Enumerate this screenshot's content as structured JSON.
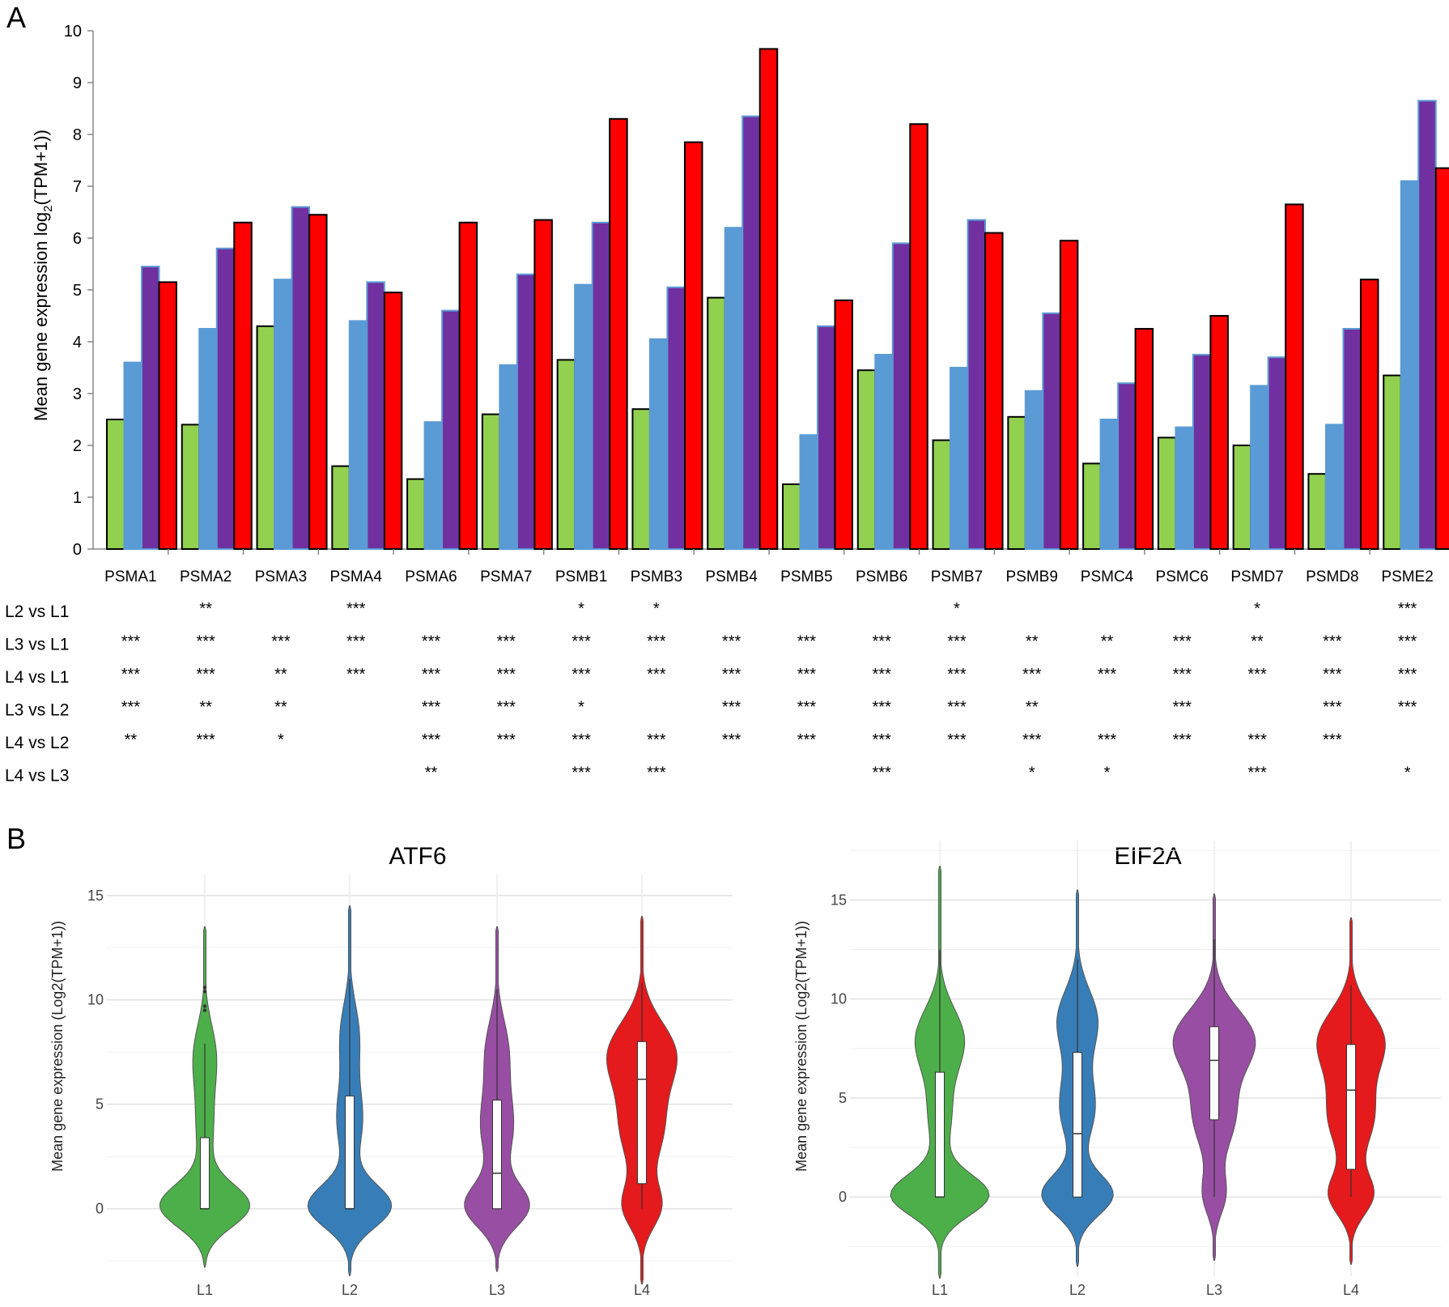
{
  "panel_labels": {
    "a": "A",
    "b": "B"
  },
  "chart_data": [
    {
      "type": "bar",
      "panel": "A",
      "ylabel_main": "Mean gene expression log",
      "ylabel_sub": "2",
      "ylabel_tail": "(TPM+1))",
      "ylim": [
        0,
        10
      ],
      "yticks": [
        0,
        1,
        2,
        3,
        4,
        5,
        6,
        7,
        8,
        9,
        10
      ],
      "grid": false,
      "colors": [
        "#92d050",
        "#5b9bd5",
        "#7030a0",
        "#ff0000"
      ],
      "categories": [
        "PSMA1",
        "PSMA2",
        "PSMA3",
        "PSMA4",
        "PSMA6",
        "PSMA7",
        "PSMB1",
        "PSMB3",
        "PSMB4",
        "PSMB5",
        "PSMB6",
        "PSMB7",
        "PSMB9",
        "PSMC4",
        "PSMC6",
        "PSMD7",
        "PSMD8",
        "PSME2"
      ],
      "series": [
        {
          "values": [
            2.5,
            2.4,
            4.3,
            1.6,
            1.35,
            2.6,
            3.65,
            2.7,
            4.85,
            1.25,
            3.45,
            2.1,
            2.55,
            1.65,
            2.15,
            2.0,
            1.45,
            3.35
          ]
        },
        {
          "values": [
            3.6,
            4.25,
            5.2,
            4.4,
            2.45,
            3.55,
            5.1,
            4.05,
            6.2,
            2.2,
            3.75,
            3.5,
            3.05,
            2.5,
            2.35,
            3.15,
            2.4,
            7.1
          ]
        },
        {
          "values": [
            5.45,
            5.8,
            6.6,
            5.15,
            4.6,
            5.3,
            6.3,
            5.05,
            8.35,
            4.3,
            5.9,
            6.35,
            4.55,
            3.2,
            3.75,
            3.7,
            4.25,
            8.65
          ]
        },
        {
          "values": [
            5.15,
            6.3,
            6.45,
            4.95,
            6.3,
            6.35,
            8.3,
            7.85,
            9.65,
            4.8,
            8.2,
            6.1,
            5.95,
            4.25,
            4.5,
            6.65,
            5.2,
            7.35
          ]
        }
      ],
      "significance": {
        "rows": [
          "L2 vs L1",
          "L3 vs L1",
          "L4 vs L1",
          "L3 vs L2",
          "L4 vs L2",
          "L4 vs L3"
        ],
        "values": [
          [
            "",
            "**",
            "",
            "***",
            "",
            "",
            "*",
            "*",
            "",
            "",
            "",
            "*",
            "",
            "",
            "",
            "*",
            "",
            "***"
          ],
          [
            "***",
            "***",
            "***",
            "***",
            "***",
            "***",
            "***",
            "***",
            "***",
            "***",
            "***",
            "***",
            "**",
            "**",
            "***",
            "**",
            "***",
            "***"
          ],
          [
            "***",
            "***",
            "**",
            "***",
            "***",
            "***",
            "***",
            "***",
            "***",
            "***",
            "***",
            "***",
            "***",
            "***",
            "***",
            "***",
            "***",
            "***"
          ],
          [
            "***",
            "**",
            "**",
            "",
            "***",
            "***",
            "*",
            "",
            "***",
            "***",
            "***",
            "***",
            "**",
            "",
            "***",
            "",
            "***",
            "***"
          ],
          [
            "**",
            "***",
            "*",
            "",
            "***",
            "***",
            "***",
            "***",
            "***",
            "***",
            "***",
            "***",
            "***",
            "***",
            "***",
            "***",
            "***",
            ""
          ],
          [
            "",
            "",
            "",
            "",
            "**",
            "",
            "***",
            "***",
            "",
            "",
            "***",
            "",
            "*",
            "*",
            "",
            "***",
            "",
            "*"
          ]
        ]
      }
    },
    {
      "type": "violin",
      "panel": "B",
      "title": "ATF6",
      "ylabel": "Mean gene expression (Log2(TPM+1))",
      "ylim": [
        -3,
        16
      ],
      "yticks": [
        0,
        5,
        10,
        15
      ],
      "grid": true,
      "categories": [
        "L1",
        "L2",
        "L3",
        "L4"
      ],
      "colors": [
        "#4daf4a",
        "#377eb8",
        "#984ea3",
        "#e41a1c"
      ],
      "groups": [
        {
          "min": -2.8,
          "max": 13.5,
          "q1": 0.0,
          "median": 0.0,
          "q3": 3.4,
          "whisker_low": 0.0,
          "whisker_high": 7.9,
          "outliers": [
            9.5,
            9.7,
            10.4,
            10.6
          ]
        },
        {
          "min": -3.2,
          "max": 14.5,
          "q1": 0.0,
          "median": 0.0,
          "q3": 5.4,
          "whisker_low": 0.0,
          "whisker_high": 11.0,
          "outliers": []
        },
        {
          "min": -3.0,
          "max": 13.5,
          "q1": 0.0,
          "median": 1.7,
          "q3": 5.2,
          "whisker_low": 0.0,
          "whisker_high": 10.5,
          "outliers": []
        },
        {
          "min": -3.6,
          "max": 14.0,
          "q1": 1.2,
          "median": 6.2,
          "q3": 8.0,
          "whisker_low": 0.0,
          "whisker_high": 10.8,
          "outliers": []
        }
      ]
    },
    {
      "type": "violin",
      "panel": "B",
      "title": "EIF2A",
      "ylabel": "Mean gene expression (Log2(TPM+1))",
      "ylim": [
        -4,
        18
      ],
      "yticks": [
        0,
        5,
        10,
        15
      ],
      "grid": true,
      "categories": [
        "L1",
        "L2",
        "L3",
        "L4"
      ],
      "colors": [
        "#4daf4a",
        "#377eb8",
        "#984ea3",
        "#e41a1c"
      ],
      "groups": [
        {
          "min": -4.1,
          "max": 16.7,
          "q1": 0.0,
          "median": 0.0,
          "q3": 6.3,
          "whisker_low": 0.0,
          "whisker_high": 12.5,
          "outliers": []
        },
        {
          "min": -3.5,
          "max": 15.5,
          "q1": 0.0,
          "median": 3.2,
          "q3": 7.3,
          "whisker_low": 0.0,
          "whisker_high": 12.0,
          "outliers": []
        },
        {
          "min": -3.2,
          "max": 15.3,
          "q1": 3.9,
          "median": 6.9,
          "q3": 8.6,
          "whisker_low": 0.0,
          "whisker_high": 13.0,
          "outliers": []
        },
        {
          "min": -3.4,
          "max": 14.1,
          "q1": 1.4,
          "median": 5.4,
          "q3": 7.7,
          "whisker_low": 0.0,
          "whisker_high": 10.7,
          "outliers": []
        }
      ]
    }
  ]
}
